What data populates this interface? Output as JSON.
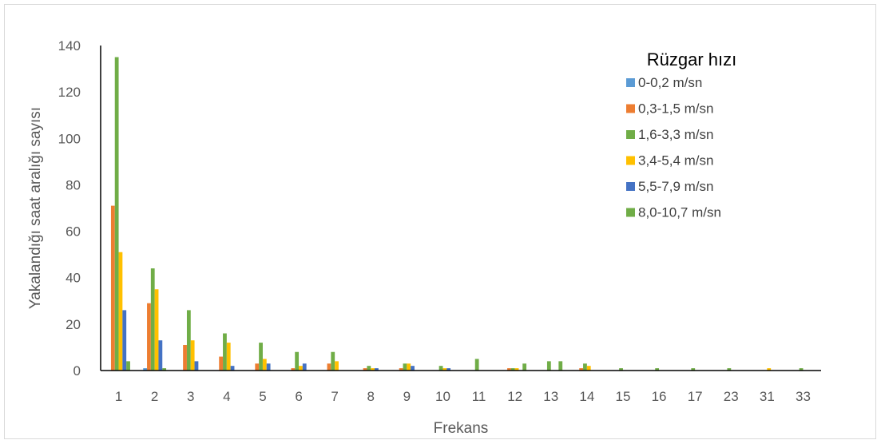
{
  "chart_data": {
    "type": "bar",
    "title": "",
    "xlabel": "Frekans",
    "ylabel": "Yakalandığı saat aralığı sayısı",
    "ylim": [
      0,
      140
    ],
    "yticks": [
      0,
      20,
      40,
      60,
      80,
      100,
      120,
      140
    ],
    "grid": false,
    "legend_title": "Rüzgar hızı",
    "legend_position": "top-right",
    "categories": [
      "1",
      "2",
      "3",
      "4",
      "5",
      "6",
      "7",
      "8",
      "9",
      "10",
      "11",
      "12",
      "13",
      "14",
      "15",
      "16",
      "17",
      "23",
      "31",
      "33"
    ],
    "series": [
      {
        "name": "0-0,2 m/sn",
        "color": "#5B9BD5",
        "values": [
          0,
          1,
          0,
          0,
          0,
          0,
          0,
          0,
          0,
          0,
          0,
          0,
          0,
          0,
          0,
          0,
          0,
          0,
          0,
          0
        ]
      },
      {
        "name": "0,3-1,5 m/sn",
        "color": "#ED7D31",
        "values": [
          71,
          29,
          11,
          6,
          3,
          1,
          3,
          1,
          1,
          0,
          0,
          1,
          0,
          1,
          0,
          0,
          0,
          0,
          0,
          0
        ]
      },
      {
        "name": "1,6-3,3 m/sn",
        "color": "#70AD47",
        "values": [
          135,
          44,
          26,
          16,
          12,
          8,
          8,
          2,
          3,
          2,
          5,
          1,
          4,
          3,
          1,
          1,
          1,
          1,
          0,
          1
        ]
      },
      {
        "name": "3,4-5,4 m/sn",
        "color": "#FFC000",
        "values": [
          51,
          35,
          13,
          12,
          5,
          2,
          4,
          1,
          3,
          1,
          0,
          1,
          0,
          2,
          0,
          0,
          0,
          0,
          1,
          0
        ]
      },
      {
        "name": "5,5-7,9 m/sn",
        "color": "#4472C4",
        "values": [
          26,
          13,
          4,
          2,
          3,
          3,
          0,
          1,
          2,
          1,
          0,
          0,
          0,
          0,
          0,
          0,
          0,
          0,
          0,
          0
        ]
      },
      {
        "name": "8,0-10,7 m/sn",
        "color": "#70AD47",
        "values": [
          4,
          1,
          0,
          0,
          0,
          0,
          0,
          0,
          0,
          0,
          0,
          3,
          4,
          0,
          0,
          0,
          0,
          0,
          0,
          0
        ]
      }
    ]
  }
}
